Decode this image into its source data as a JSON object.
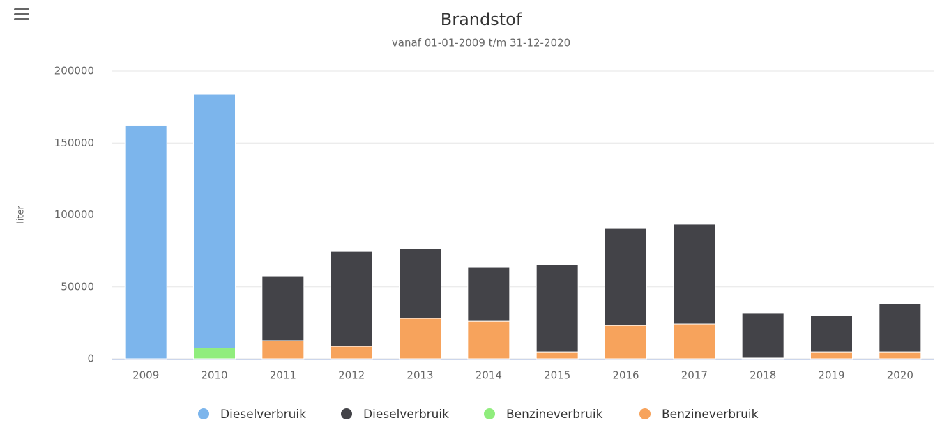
{
  "chart_data": {
    "type": "stacked_bar",
    "title": "Brandstof",
    "subtitle": "vanaf 01-01-2009 t/m 31-12-2020",
    "y_axis_label": "liter",
    "categories": [
      "2009",
      "2010",
      "2011",
      "2012",
      "2013",
      "2014",
      "2015",
      "2016",
      "2017",
      "2018",
      "2019",
      "2020"
    ],
    "series": [
      {
        "name": "Dieselverbruik",
        "color": "#7cb5ec",
        "values": [
          162000,
          176500,
          null,
          null,
          null,
          null,
          null,
          null,
          null,
          null,
          null,
          null
        ]
      },
      {
        "name": "Dieselverbruik",
        "color": "#434348",
        "values": [
          null,
          null,
          45000,
          66300,
          48400,
          37800,
          60600,
          67800,
          69300,
          31500,
          25200,
          33500
        ]
      },
      {
        "name": "Benzineverbruik",
        "color": "#90ed7d",
        "values": [
          null,
          7500,
          null,
          null,
          null,
          null,
          null,
          null,
          null,
          null,
          null,
          null
        ]
      },
      {
        "name": "Benzineverbruik",
        "color": "#f7a35c",
        "values": [
          null,
          null,
          12600,
          8700,
          28100,
          26100,
          4800,
          23200,
          24200,
          500,
          4800,
          4800
        ]
      }
    ],
    "ylim": [
      0,
      200000
    ],
    "yticks": [
      0,
      50000,
      100000,
      150000,
      200000
    ],
    "grid": true,
    "legend": "bottom"
  }
}
